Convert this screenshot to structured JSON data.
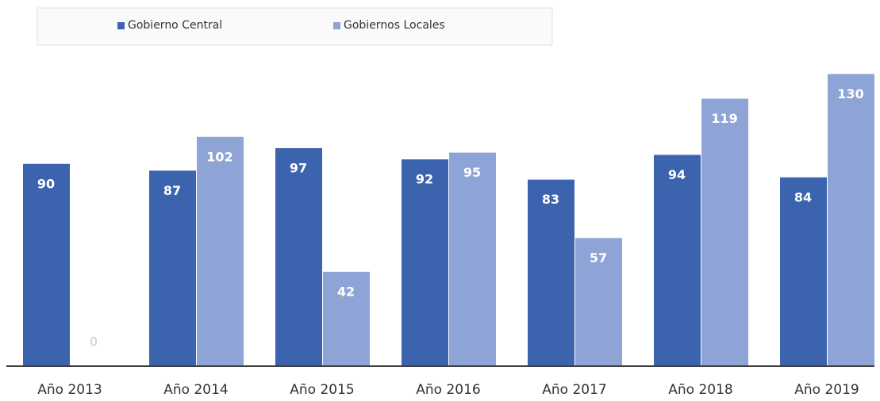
{
  "chart_data": {
    "type": "bar",
    "categories": [
      "Año 2013",
      "Año 2014",
      "Año 2015",
      "Año 2016",
      "Año 2017",
      "Año 2018",
      "Año 2019"
    ],
    "series": [
      {
        "name": "Gobierno Central",
        "color": "#3c63ad",
        "values": [
          90,
          87,
          97,
          92,
          83,
          94,
          84
        ]
      },
      {
        "name": "Gobiernos Locales",
        "color": "#8fa4d6",
        "values": [
          0,
          102,
          42,
          95,
          57,
          119,
          130
        ]
      }
    ],
    "ylim": [
      0,
      140
    ],
    "legend": "top"
  }
}
